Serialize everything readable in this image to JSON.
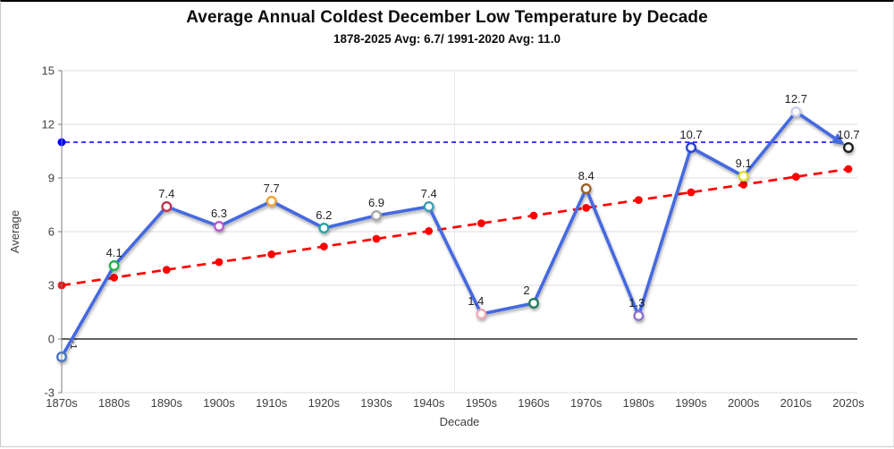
{
  "title": "Average Annual Coldest December Low Temperature by Decade",
  "subtitle": "1878-2025 Avg: 6.7/ 1991-2020 Avg: 11.0",
  "chart_data": {
    "type": "line",
    "title": "Average Annual Coldest December Low Temperature by Decade",
    "subtitle": "1878-2025 Avg: 6.7/ 1991-2020 Avg: 11.0",
    "xlabel": "Decade",
    "ylabel": "Average",
    "ylim": [
      -3,
      15
    ],
    "yticks": [
      15,
      12,
      9,
      6,
      3,
      0,
      -3
    ],
    "grid": "horizontal",
    "legend": "none",
    "categories": [
      "1870s",
      "1880s",
      "1890s",
      "1900s",
      "1910s",
      "1920s",
      "1930s",
      "1940s",
      "1950s",
      "1960s",
      "1970s",
      "1980s",
      "1990s",
      "2000s",
      "2010s",
      "2020s"
    ],
    "series": [
      {
        "name": "decade-average",
        "type": "line",
        "color": "#4569E0",
        "arrow_end": true,
        "values": [
          -1,
          4.1,
          7.4,
          6.3,
          7.7,
          6.2,
          6.9,
          7.4,
          1.4,
          2,
          8.4,
          1.3,
          10.7,
          9.1,
          12.7,
          10.7
        ],
        "point_labels": [
          "-1",
          "4.1",
          "7.4",
          "6.3",
          "7.7",
          "6.2",
          "6.9",
          "7.4",
          "1.4",
          "2",
          "8.4",
          "1.3",
          "10.7",
          "9.1",
          "12.7",
          "10.7"
        ],
        "marker_colors": [
          "#4472C4",
          "#21B24B",
          "#C0314E",
          "#BA55D3",
          "#EFA02E",
          "#2AA3A0",
          "#A6A6A6",
          "#3D9DB3",
          "#EFA8B8",
          "#26785C",
          "#9C5F26",
          "#8F6FD0",
          "#2340D8",
          "#E0DC33",
          "#C9CDE9",
          "#1A1A1A"
        ]
      },
      {
        "name": "linear-trend",
        "type": "line",
        "style": "dashed",
        "color": "#FF0000",
        "values": [
          3,
          3.43,
          3.87,
          4.3,
          4.73,
          5.17,
          5.6,
          6.03,
          6.47,
          6.9,
          7.33,
          7.77,
          8.2,
          8.63,
          9.07,
          9.5
        ]
      }
    ],
    "reference_line": {
      "value": 11.0,
      "color": "#0000FF",
      "style": "dashed",
      "start_dot": true
    },
    "colors": {
      "grid": "#DCDCDC",
      "faint_vgrid": "#EAEAEA",
      "axis": "#7F7F7F",
      "zero_line": "#000000",
      "tick_text": "#3F3F3F",
      "label_text": "#1F1F1F"
    }
  }
}
